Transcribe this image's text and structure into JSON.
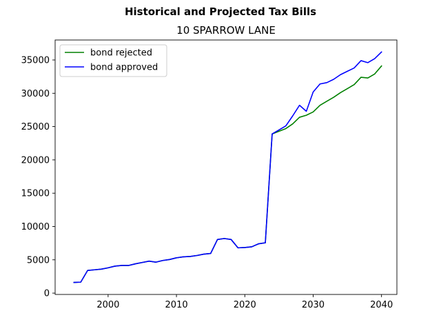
{
  "chart_data": {
    "type": "line",
    "title": "Historical and Projected Tax Bills",
    "subtitle": "10 SPARROW LANE",
    "xlabel": "",
    "ylabel": "",
    "xlim": [
      1992.25,
      2042.25
    ],
    "ylim": [
      -200,
      38000
    ],
    "xticks": [
      2000,
      2010,
      2020,
      2030,
      2040
    ],
    "yticks": [
      0,
      5000,
      10000,
      15000,
      20000,
      25000,
      30000,
      35000
    ],
    "grid": false,
    "legend_position": "top-left",
    "series": [
      {
        "name": "bond rejected",
        "color": "#008000",
        "x": [
          1995,
          1996,
          1997,
          1998,
          1999,
          2000,
          2001,
          2002,
          2003,
          2004,
          2005,
          2006,
          2007,
          2008,
          2009,
          2010,
          2011,
          2012,
          2013,
          2014,
          2015,
          2016,
          2017,
          2018,
          2019,
          2020,
          2021,
          2022,
          2023,
          2024,
          2025,
          2026,
          2027,
          2028,
          2029,
          2030,
          2031,
          2032,
          2033,
          2034,
          2035,
          2036,
          2037,
          2038,
          2039,
          2040
        ],
        "values": [
          1600,
          1650,
          3400,
          3500,
          3600,
          3800,
          4050,
          4150,
          4150,
          4400,
          4600,
          4800,
          4650,
          4900,
          5050,
          5300,
          5450,
          5500,
          5650,
          5850,
          5950,
          8050,
          8200,
          8050,
          6800,
          6850,
          6950,
          7400,
          7550,
          23900,
          24300,
          24700,
          25400,
          26400,
          26700,
          27200,
          28200,
          28800,
          29400,
          30100,
          30700,
          31300,
          32400,
          32300,
          32900,
          34100
        ]
      },
      {
        "name": "bond approved",
        "color": "#0000ff",
        "x": [
          1995,
          1996,
          1997,
          1998,
          1999,
          2000,
          2001,
          2002,
          2003,
          2004,
          2005,
          2006,
          2007,
          2008,
          2009,
          2010,
          2011,
          2012,
          2013,
          2014,
          2015,
          2016,
          2017,
          2018,
          2019,
          2020,
          2021,
          2022,
          2023,
          2024,
          2025,
          2026,
          2027,
          2028,
          2029,
          2030,
          2031,
          2032,
          2033,
          2034,
          2035,
          2036,
          2037,
          2038,
          2039,
          2040
        ],
        "values": [
          1600,
          1650,
          3400,
          3500,
          3600,
          3800,
          4050,
          4150,
          4150,
          4400,
          4600,
          4800,
          4650,
          4900,
          5050,
          5300,
          5450,
          5500,
          5650,
          5850,
          5950,
          8050,
          8200,
          8050,
          6800,
          6850,
          6950,
          7400,
          7550,
          23900,
          24500,
          25100,
          26600,
          28200,
          27300,
          30200,
          31400,
          31600,
          32100,
          32800,
          33300,
          33800,
          34900,
          34600,
          35200,
          36200
        ]
      }
    ]
  }
}
